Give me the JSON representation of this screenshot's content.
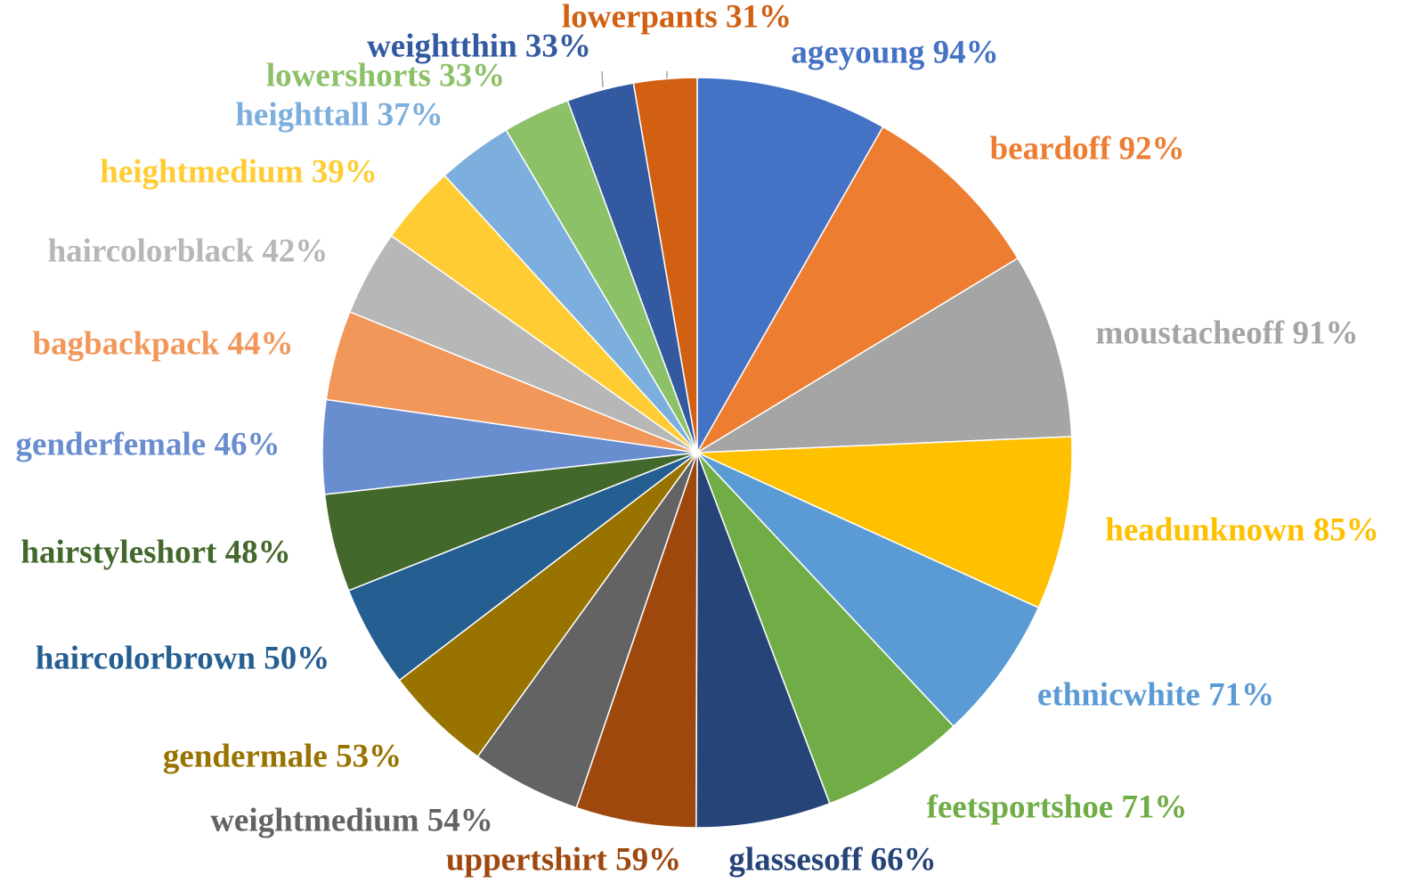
{
  "chart_data": {
    "type": "pie",
    "direction": "clockwise",
    "start": "top",
    "slices": [
      {
        "label": "ageyoung",
        "value": 94,
        "display": "94%",
        "color": "#4472C4"
      },
      {
        "label": "beardoff",
        "value": 92,
        "display": "92%",
        "color": "#ED7D31"
      },
      {
        "label": "moustacheoff",
        "value": 91,
        "display": "91%",
        "color": "#A5A5A5"
      },
      {
        "label": "headunknown",
        "value": 85,
        "display": "85%",
        "color": "#FFC000"
      },
      {
        "label": "ethnicwhite",
        "value": 71,
        "display": "71%",
        "color": "#5B9BD5"
      },
      {
        "label": "feetsportshoe",
        "value": 71,
        "display": "71%",
        "color": "#70AD47"
      },
      {
        "label": "glassesoff",
        "value": 66,
        "display": "66%",
        "color": "#264478"
      },
      {
        "label": "uppertshirt",
        "value": 59,
        "display": "59%",
        "color": "#9E480E"
      },
      {
        "label": "weightmedium",
        "value": 54,
        "display": "54%",
        "color": "#636363"
      },
      {
        "label": "gendermale",
        "value": 53,
        "display": "53%",
        "color": "#997300"
      },
      {
        "label": "haircolorbrown",
        "value": 50,
        "display": "50%",
        "color": "#255E91"
      },
      {
        "label": "hairstyleshort",
        "value": 48,
        "display": "48%",
        "color": "#43682B"
      },
      {
        "label": "genderfemale",
        "value": 46,
        "display": "46%",
        "color": "#698ED0"
      },
      {
        "label": "bagbackpack",
        "value": 44,
        "display": "44%",
        "color": "#F1975A"
      },
      {
        "label": "haircolorblack",
        "value": 42,
        "display": "42%",
        "color": "#B7B7B7"
      },
      {
        "label": "heightmedium",
        "value": 39,
        "display": "39%",
        "color": "#FFCD33"
      },
      {
        "label": "heighttall",
        "value": 37,
        "display": "37%",
        "color": "#7CAFDD"
      },
      {
        "label": "lowershorts",
        "value": 33,
        "display": "33%",
        "color": "#8CC168"
      },
      {
        "label": "weightthin",
        "value": 33,
        "display": "33%",
        "color": "#335AA1"
      },
      {
        "label": "lowerpants",
        "value": 31,
        "display": "31%",
        "color": "#D26012"
      }
    ]
  }
}
